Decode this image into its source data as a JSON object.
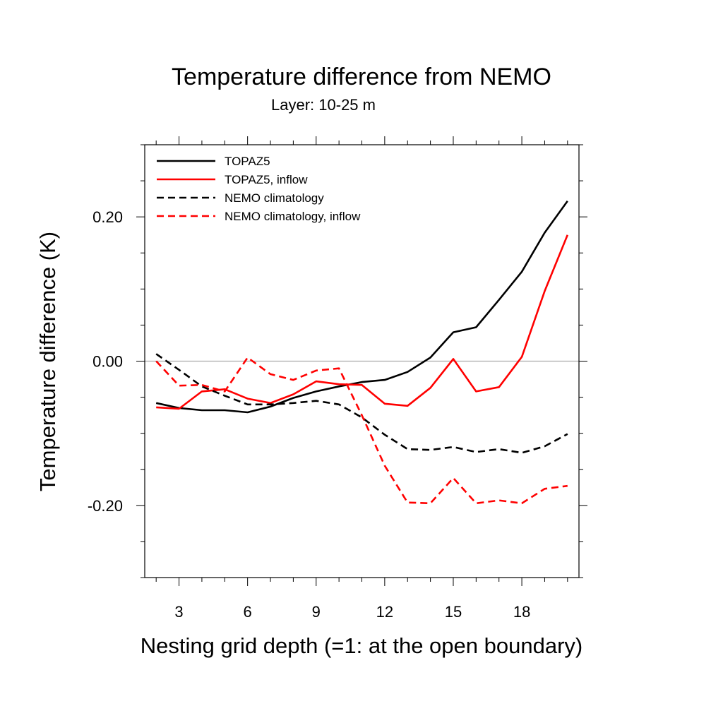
{
  "chart_data": {
    "type": "line",
    "title": "Temperature difference from NEMO",
    "subtitle": "Layer: 10-25 m",
    "xlabel": "Nesting grid depth (=1: at the open boundary)",
    "ylabel": "Temperature difference (K)",
    "xlim": [
      1.5,
      20.5
    ],
    "ylim": [
      -0.3,
      0.3
    ],
    "x_ticks": [
      3,
      6,
      9,
      12,
      15,
      18
    ],
    "y_ticks": [
      -0.2,
      0.0,
      0.2
    ],
    "y_tick_labels": [
      "-0.20",
      "0.00",
      "0.20"
    ],
    "zero_line": true,
    "grid": false,
    "legend_position": "top-left",
    "x": [
      2,
      3,
      4,
      5,
      6,
      7,
      8,
      9,
      10,
      11,
      12,
      13,
      14,
      15,
      16,
      17,
      18,
      19,
      20
    ],
    "series": [
      {
        "name": "TOPAZ5",
        "color": "#000000",
        "dashed": false,
        "values": [
          -0.058,
          -0.065,
          -0.068,
          -0.068,
          -0.071,
          -0.063,
          -0.051,
          -0.042,
          -0.035,
          -0.029,
          -0.026,
          -0.015,
          0.005,
          0.04,
          0.047,
          0.085,
          0.124,
          0.178,
          0.222
        ]
      },
      {
        "name": "TOPAZ5, inflow",
        "color": "#ff0000",
        "dashed": false,
        "values": [
          -0.064,
          -0.066,
          -0.042,
          -0.039,
          -0.052,
          -0.058,
          -0.046,
          -0.028,
          -0.032,
          -0.033,
          -0.059,
          -0.062,
          -0.037,
          0.003,
          -0.042,
          -0.036,
          0.006,
          0.097,
          0.175
        ]
      },
      {
        "name": "NEMO climatology",
        "color": "#000000",
        "dashed": true,
        "values": [
          0.01,
          -0.012,
          -0.035,
          -0.048,
          -0.06,
          -0.06,
          -0.058,
          -0.055,
          -0.06,
          -0.078,
          -0.102,
          -0.122,
          -0.123,
          -0.119,
          -0.126,
          -0.122,
          -0.127,
          -0.118,
          -0.101
        ]
      },
      {
        "name": "NEMO climatology, inflow",
        "color": "#ff0000",
        "dashed": true,
        "values": [
          0.0,
          -0.034,
          -0.033,
          -0.042,
          0.005,
          -0.018,
          -0.026,
          -0.013,
          -0.01,
          -0.075,
          -0.145,
          -0.196,
          -0.197,
          -0.162,
          -0.197,
          -0.193,
          -0.197,
          -0.177,
          -0.173
        ]
      }
    ]
  }
}
